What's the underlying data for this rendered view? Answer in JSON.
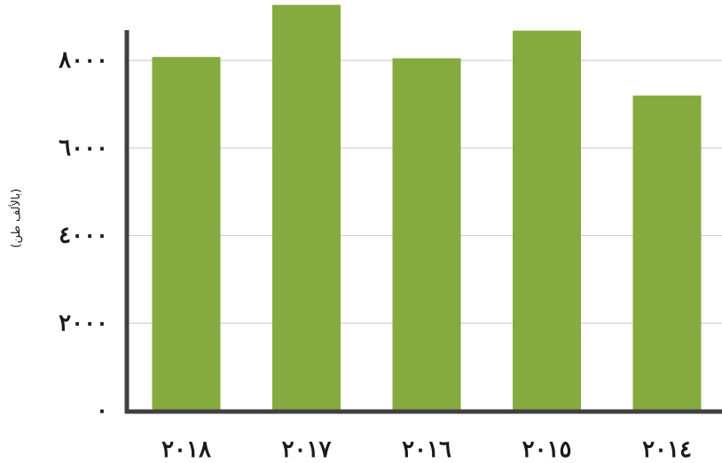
{
  "chart_data": {
    "type": "bar",
    "categories": [
      "٢٠١٨",
      "٢٠١٧",
      "٢٠١٦",
      "٢٠١٥",
      "٢٠١٤"
    ],
    "values": [
      8080,
      9270,
      8050,
      8680,
      7200
    ],
    "title": "",
    "xlabel": "",
    "ylabel": "(بالألف طن)",
    "ylim": [
      0,
      9300
    ],
    "yticks": [
      0,
      2000,
      4000,
      6000,
      8000
    ],
    "ytick_labels": [
      "٠",
      "٢٠٠٠",
      "٤٠٠٠",
      "٦٠٠٠",
      "٨٠٠٠"
    ],
    "grid": true,
    "legend": "none",
    "colors": {
      "bar": "#84aa40",
      "axis": "#404040",
      "grid": "#c8c8c8"
    }
  }
}
